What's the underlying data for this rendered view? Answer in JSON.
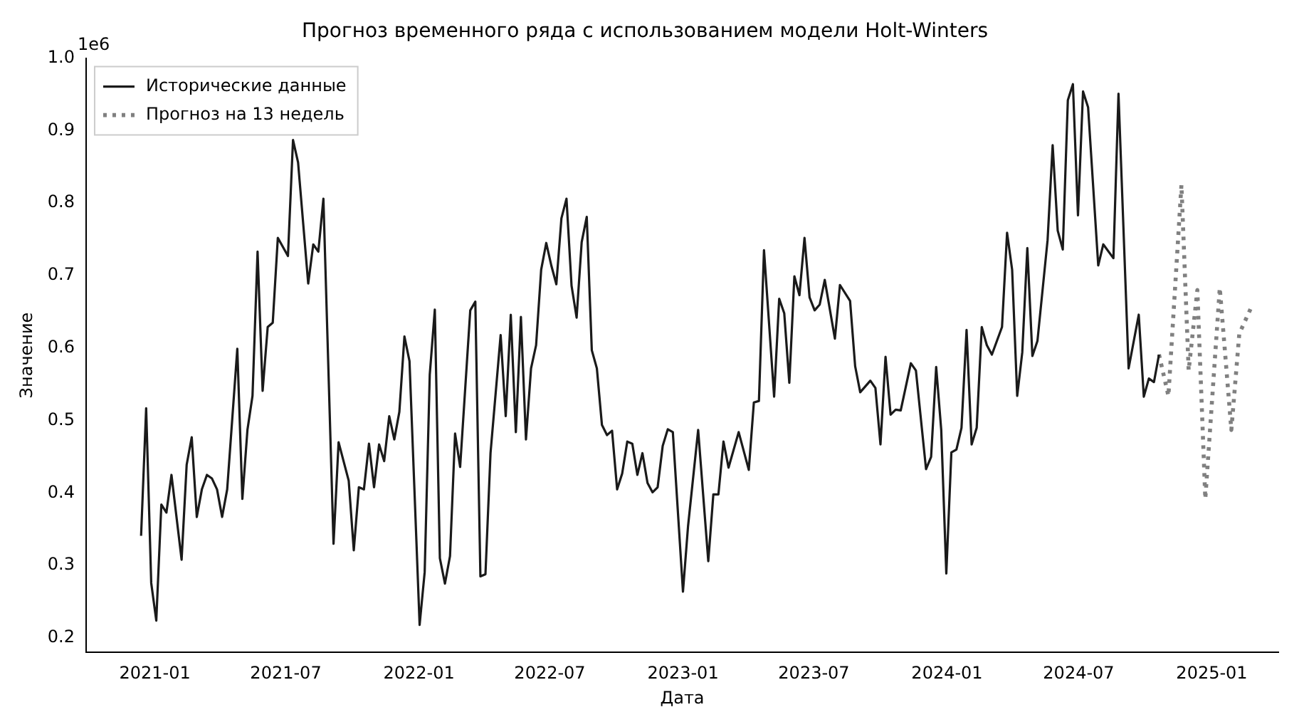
{
  "chart_data": {
    "type": "line",
    "title": "Прогноз временного ряда с использованием модели Holt-Winters",
    "xlabel": "Дата",
    "ylabel": "Значение",
    "annotations": [
      "1e6"
    ],
    "xlim": [
      "2020-09-28",
      "2025-04-03"
    ],
    "xticks": [
      "2021-01",
      "2021-07",
      "2022-01",
      "2022-07",
      "2023-01",
      "2023-07",
      "2024-01",
      "2024-07",
      "2025-01"
    ],
    "ylim": [
      0.18,
      1.0
    ],
    "yticks": [
      0.2,
      0.3,
      0.4,
      0.5,
      0.6,
      0.7,
      0.8,
      0.9,
      {
        "value": 1.0,
        "label": "1.0"
      }
    ],
    "grid": false,
    "legend": "top left",
    "marker": "none",
    "series": [
      {
        "name": "Исторические данные",
        "color": "#1a1a1a",
        "line_style": "solid",
        "x": [
          "2020-12-13",
          "2020-12-20",
          "2020-12-27",
          "2021-01-03",
          "2021-01-10",
          "2021-01-17",
          "2021-01-24",
          "2021-02-07",
          "2021-02-14",
          "2021-02-21",
          "2021-02-28",
          "2021-03-07",
          "2021-03-14",
          "2021-03-21",
          "2021-03-28",
          "2021-04-04",
          "2021-04-11",
          "2021-04-25",
          "2021-05-02",
          "2021-05-09",
          "2021-05-16",
          "2021-05-23",
          "2021-05-30",
          "2021-06-06",
          "2021-06-13",
          "2021-06-20",
          "2021-07-04",
          "2021-07-11",
          "2021-07-18",
          "2021-08-01",
          "2021-08-08",
          "2021-08-15",
          "2021-08-22",
          "2021-09-05",
          "2021-09-12",
          "2021-09-26",
          "2021-10-03",
          "2021-10-10",
          "2021-10-17",
          "2021-10-24",
          "2021-10-31",
          "2021-11-07",
          "2021-11-14",
          "2021-11-21",
          "2021-11-28",
          "2021-12-05",
          "2021-12-12",
          "2021-12-19",
          "2022-01-02",
          "2022-01-09",
          "2022-01-16",
          "2022-01-23",
          "2022-01-30",
          "2022-02-06",
          "2022-02-13",
          "2022-02-20",
          "2022-02-27",
          "2022-03-13",
          "2022-03-20",
          "2022-03-27",
          "2022-04-03",
          "2022-04-10",
          "2022-04-24",
          "2022-05-01",
          "2022-05-08",
          "2022-05-15",
          "2022-05-22",
          "2022-05-29",
          "2022-06-05",
          "2022-06-12",
          "2022-06-19",
          "2022-06-26",
          "2022-07-03",
          "2022-07-10",
          "2022-07-17",
          "2022-07-24",
          "2022-07-31",
          "2022-08-07",
          "2022-08-14",
          "2022-08-21",
          "2022-08-28",
          "2022-09-04",
          "2022-09-11",
          "2022-09-18",
          "2022-09-25",
          "2022-10-02",
          "2022-10-09",
          "2022-10-16",
          "2022-10-23",
          "2022-10-30",
          "2022-11-06",
          "2022-11-13",
          "2022-11-20",
          "2022-11-27",
          "2022-12-04",
          "2022-12-11",
          "2022-12-18",
          "2023-01-01",
          "2023-01-08",
          "2023-01-22",
          "2023-02-05",
          "2023-02-12",
          "2023-02-19",
          "2023-02-26",
          "2023-03-05",
          "2023-03-19",
          "2023-04-02",
          "2023-04-09",
          "2023-04-16",
          "2023-04-23",
          "2023-05-07",
          "2023-05-14",
          "2023-05-21",
          "2023-05-28",
          "2023-06-04",
          "2023-06-11",
          "2023-06-18",
          "2023-06-25",
          "2023-07-02",
          "2023-07-09",
          "2023-07-16",
          "2023-07-30",
          "2023-08-06",
          "2023-08-20",
          "2023-08-27",
          "2023-09-03",
          "2023-09-17",
          "2023-09-24",
          "2023-10-01",
          "2023-10-08",
          "2023-10-15",
          "2023-10-22",
          "2023-10-29",
          "2023-11-12",
          "2023-11-19",
          "2023-12-03",
          "2023-12-10",
          "2023-12-17",
          "2023-12-24",
          "2023-12-31",
          "2024-01-07",
          "2024-01-14",
          "2024-01-21",
          "2024-01-28",
          "2024-02-04",
          "2024-02-11",
          "2024-02-18",
          "2024-02-25",
          "2024-03-03",
          "2024-03-17",
          "2024-03-24",
          "2024-03-31",
          "2024-04-07",
          "2024-04-14",
          "2024-04-21",
          "2024-04-28",
          "2024-05-05",
          "2024-05-19",
          "2024-05-26",
          "2024-06-02",
          "2024-06-09",
          "2024-06-16",
          "2024-06-23",
          "2024-06-30",
          "2024-07-07",
          "2024-07-14",
          "2024-07-28",
          "2024-08-04",
          "2024-08-18",
          "2024-08-25",
          "2024-09-08",
          "2024-09-22",
          "2024-09-29",
          "2024-10-06",
          "2024-10-13",
          "2024-10-20"
        ],
        "values": [
          0.341,
          0.517,
          0.276,
          0.224,
          0.384,
          0.373,
          0.425,
          0.308,
          0.439,
          0.477,
          0.367,
          0.405,
          0.425,
          0.42,
          0.405,
          0.367,
          0.405,
          0.599,
          0.392,
          0.487,
          0.534,
          0.733,
          0.541,
          0.629,
          0.635,
          0.752,
          0.727,
          0.887,
          0.856,
          0.689,
          0.743,
          0.733,
          0.806,
          0.33,
          0.47,
          0.417,
          0.321,
          0.408,
          0.405,
          0.468,
          0.408,
          0.467,
          0.444,
          0.506,
          0.474,
          0.512,
          0.616,
          0.582,
          0.218,
          0.291,
          0.563,
          0.653,
          0.31,
          0.275,
          0.313,
          0.482,
          0.436,
          0.652,
          0.664,
          0.285,
          0.288,
          0.455,
          0.618,
          0.506,
          0.646,
          0.484,
          0.643,
          0.474,
          0.572,
          0.604,
          0.708,
          0.745,
          0.714,
          0.688,
          0.779,
          0.806,
          0.686,
          0.642,
          0.746,
          0.781,
          0.597,
          0.572,
          0.494,
          0.48,
          0.486,
          0.405,
          0.427,
          0.471,
          0.468,
          0.425,
          0.455,
          0.414,
          0.401,
          0.408,
          0.465,
          0.488,
          0.484,
          0.264,
          0.354,
          0.487,
          0.306,
          0.398,
          0.398,
          0.471,
          0.435,
          0.484,
          0.432,
          0.525,
          0.527,
          0.735,
          0.533,
          0.668,
          0.648,
          0.552,
          0.699,
          0.673,
          0.752,
          0.67,
          0.652,
          0.66,
          0.694,
          0.613,
          0.687,
          0.665,
          0.575,
          0.539,
          0.555,
          0.545,
          0.467,
          0.588,
          0.508,
          0.515,
          0.514,
          0.579,
          0.569,
          0.433,
          0.45,
          0.574,
          0.487,
          0.289,
          0.456,
          0.46,
          0.49,
          0.625,
          0.467,
          0.49,
          0.629,
          0.604,
          0.591,
          0.629,
          0.759,
          0.708,
          0.534,
          0.594,
          0.738,
          0.589,
          0.61,
          0.749,
          0.88,
          0.762,
          0.736,
          0.942,
          0.964,
          0.783,
          0.954,
          0.932,
          0.714,
          0.743,
          0.724,
          0.951,
          0.572,
          0.646,
          0.533,
          0.558,
          0.553,
          0.591
        ]
      },
      {
        "name": "Прогноз на 13 недель",
        "color": "#808080",
        "line_style": "dotted",
        "x": [
          "2024-10-20",
          "2024-11-02",
          "2024-11-20",
          "2024-11-30",
          "2024-12-12",
          "2024-12-23",
          "2025-01-12",
          "2025-01-28",
          "2025-02-08",
          "2025-02-24"
        ],
        "values": [
          0.591,
          0.534,
          0.825,
          0.569,
          0.68,
          0.392,
          0.683,
          0.487,
          0.62,
          0.655
        ]
      }
    ]
  }
}
